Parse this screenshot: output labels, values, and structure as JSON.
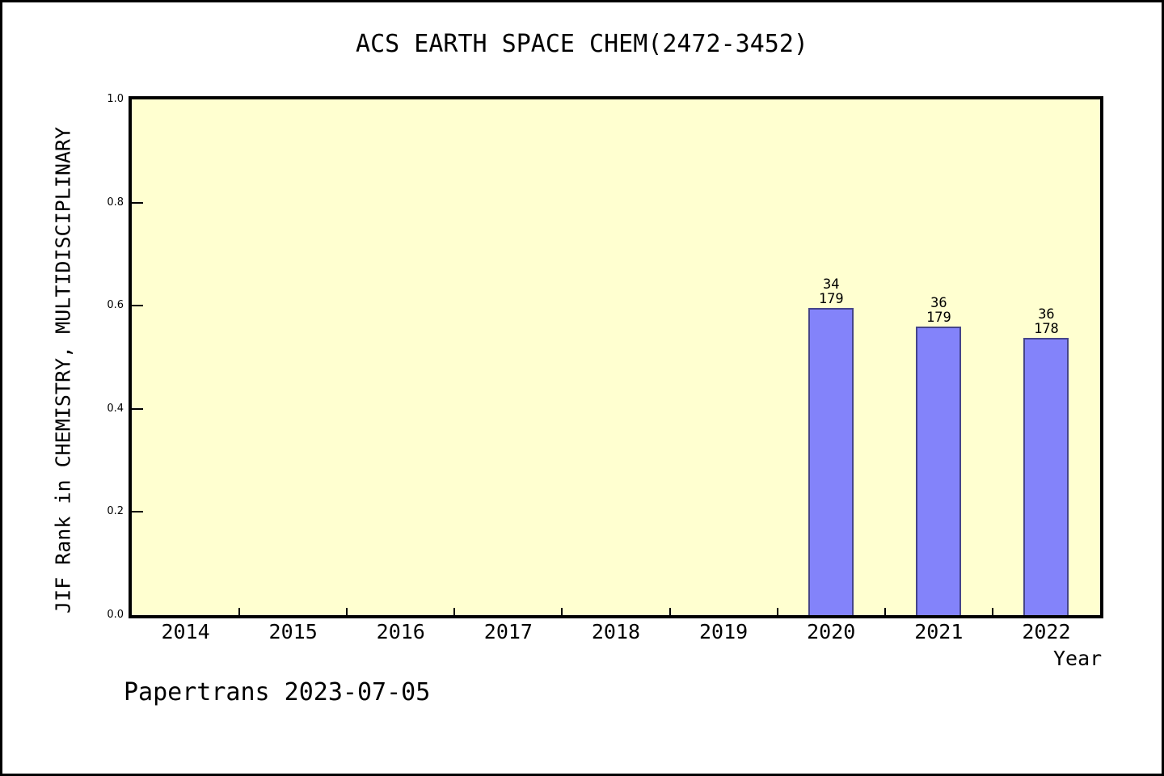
{
  "chart_data": {
    "type": "bar",
    "title": "ACS EARTH SPACE CHEM(2472-3452)",
    "xlabel": "Year",
    "ylabel": "JIF Rank in CHEMISTRY, MULTIDISCIPLINARY",
    "categories": [
      "2014",
      "2015",
      "2016",
      "2017",
      "2018",
      "2019",
      "2020",
      "2021",
      "2022"
    ],
    "ylim": [
      0.0,
      1.0
    ],
    "y_ticks": [
      "0.0",
      "0.2",
      "0.4",
      "0.6",
      "0.8",
      "1.0"
    ],
    "grid": false,
    "legend_position": "none",
    "series": [
      {
        "name": "JIF Rank",
        "points": [
          {
            "category": "2020",
            "value": 0.595,
            "rank": 34,
            "total": 179,
            "label_lines": [
              "34",
              "179"
            ]
          },
          {
            "category": "2021",
            "value": 0.56,
            "rank": 36,
            "total": 179,
            "label_lines": [
              "36",
              "179"
            ]
          },
          {
            "category": "2022",
            "value": 0.537,
            "rank": 36,
            "total": 178,
            "label_lines": [
              "36",
              "178"
            ]
          }
        ]
      }
    ],
    "colors": {
      "bar_fill": "#8383fa",
      "bar_edge": "#45458a",
      "plot_background": "#ffffd0",
      "axis_frame": "#000000",
      "page_background": "#ffffff"
    }
  },
  "footer": {
    "text": "Papertrans 2023-07-05"
  }
}
